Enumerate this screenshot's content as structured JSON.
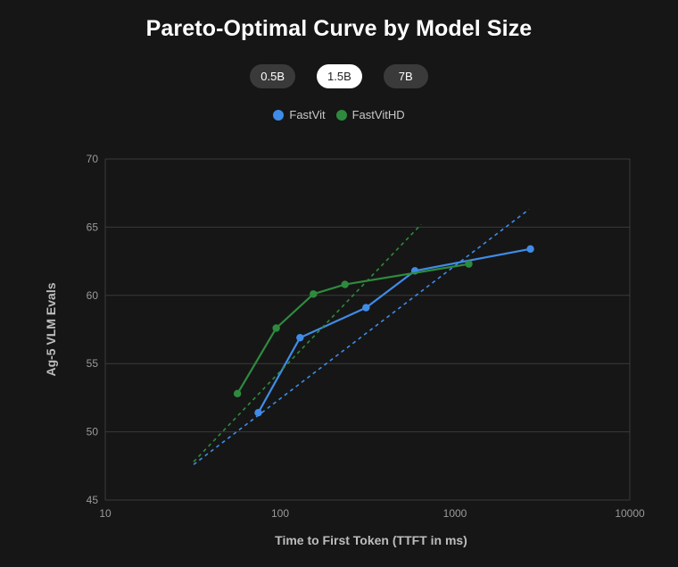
{
  "title": "Pareto-Optimal Curve by Model Size",
  "size_tabs": [
    {
      "label": "0.5B",
      "active": false
    },
    {
      "label": "1.5B",
      "active": true
    },
    {
      "label": "7B",
      "active": false
    }
  ],
  "chart_data": {
    "type": "line",
    "title": "Pareto-Optimal Curve by Model Size",
    "xlabel": "Time to First Token (TTFT in ms)",
    "ylabel": "Ag-5 VLM Evals",
    "x_scale": "log",
    "xlim": [
      10,
      10000
    ],
    "ylim": [
      45,
      70
    ],
    "x_ticks": [
      10,
      100,
      1000,
      10000
    ],
    "x_tick_labels": [
      "10",
      "100",
      "1000",
      "10000"
    ],
    "y_ticks": [
      45,
      50,
      55,
      60,
      65,
      70
    ],
    "y_tick_labels": [
      "45",
      "50",
      "55",
      "60",
      "65",
      "70"
    ],
    "grid": true,
    "legend_position": "top-center",
    "series": [
      {
        "name": "FastVit",
        "color": "#3f8ce8",
        "x": [
          75,
          130,
          310,
          590,
          2700
        ],
        "y": [
          51.4,
          56.9,
          59.1,
          61.8,
          63.4
        ],
        "trend": {
          "x": [
            32,
            2650
          ],
          "y": [
            47.6,
            66.3
          ]
        }
      },
      {
        "name": "FastVitHD",
        "color": "#2e8b3e",
        "x": [
          57,
          95,
          155,
          235,
          1200
        ],
        "y": [
          52.8,
          57.6,
          60.1,
          60.8,
          62.3
        ],
        "trend": {
          "x": [
            32,
            640
          ],
          "y": [
            47.8,
            65.2
          ]
        }
      }
    ]
  }
}
